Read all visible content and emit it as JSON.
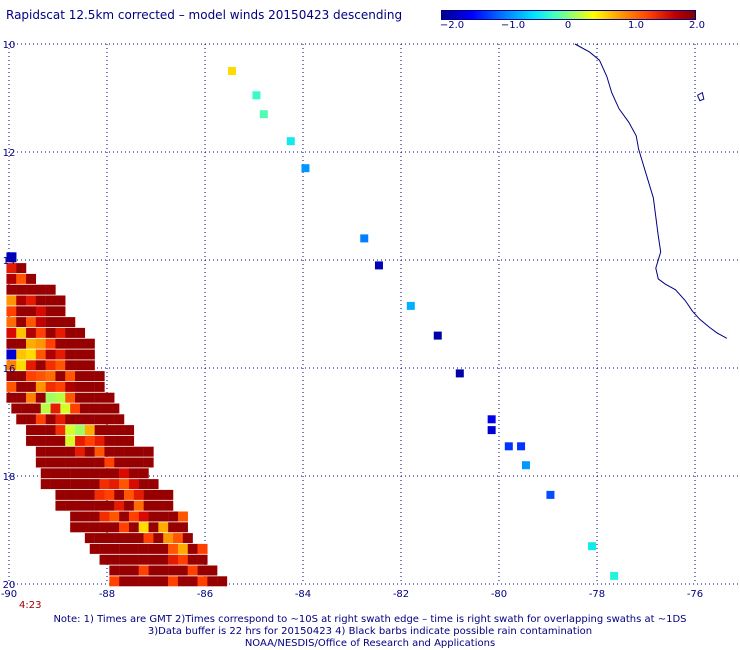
{
  "header": {
    "title": "Rapidscat 12.5km corrected – model winds 20150423 descending"
  },
  "colorbar": {
    "ticks": [
      "−2.0",
      "−1.0",
      "0",
      "1.0",
      "2.0"
    ],
    "values": [
      -2.0,
      -1.0,
      0,
      1.0,
      2.0
    ]
  },
  "chart_data": {
    "type": "heatmap",
    "title": "Rapidscat 12.5km corrected – model winds 20150423 descending",
    "xlabel": "",
    "ylabel": "",
    "xlim": [
      -90,
      -75
    ],
    "ylim": [
      10,
      20
    ],
    "y_direction": "increasing-downward",
    "x_ticks": [
      -90,
      -88,
      -86,
      -84,
      -82,
      -80,
      -78,
      -76
    ],
    "y_ticks": [
      10,
      12,
      14,
      16,
      18,
      20
    ],
    "x_tick_labels": [
      "-90",
      "-88",
      "-86",
      "-84",
      "-82",
      "-80",
      "-78",
      "-76"
    ],
    "y_tick_labels": [
      "10",
      "12",
      "14",
      "16",
      "18",
      "20"
    ],
    "grid": true,
    "grid_style": "dotted",
    "colorbar_range": [
      -2.0,
      2.0
    ],
    "colors": {
      "grid": "#000080",
      "coast": "#000080",
      "dark_red": "#800000",
      "red": "#e00000",
      "orange": "#ff8000",
      "yellow": "#ffff00",
      "green": "#a0ff60"
    },
    "points": [
      {
        "lon": -85.45,
        "lat": 10.5,
        "v": 0.6
      },
      {
        "lon": -84.95,
        "lat": 10.95,
        "v": -0.3
      },
      {
        "lon": -84.8,
        "lat": 11.3,
        "v": -0.2
      },
      {
        "lon": -84.25,
        "lat": 11.8,
        "v": -0.5
      },
      {
        "lon": -83.95,
        "lat": 12.3,
        "v": -0.9
      },
      {
        "lon": -82.75,
        "lat": 13.6,
        "v": -1.0
      },
      {
        "lon": -82.45,
        "lat": 14.1,
        "v": -1.8
      },
      {
        "lon": -81.8,
        "lat": 14.85,
        "v": -0.8
      },
      {
        "lon": -81.25,
        "lat": 15.4,
        "v": -1.9
      },
      {
        "lon": -80.8,
        "lat": 16.1,
        "v": -1.9
      },
      {
        "lon": -80.15,
        "lat": 16.95,
        "v": -1.6
      },
      {
        "lon": -80.15,
        "lat": 17.15,
        "v": -1.7
      },
      {
        "lon": -79.8,
        "lat": 17.45,
        "v": -1.3
      },
      {
        "lon": -79.55,
        "lat": 17.45,
        "v": -1.3
      },
      {
        "lon": -79.45,
        "lat": 17.8,
        "v": -0.9
      },
      {
        "lon": -78.95,
        "lat": 18.35,
        "v": -1.2
      },
      {
        "lon": -78.1,
        "lat": 19.3,
        "v": -0.5
      },
      {
        "lon": -77.65,
        "lat": 19.85,
        "v": -0.4
      }
    ],
    "swath_rows": [
      {
        "lat": 13.95,
        "lon0": -89.95,
        "vals": [
          -1.8
        ]
      },
      {
        "lat": 14.15,
        "lon0": -89.95,
        "vals": [
          1.5,
          1.9
        ]
      },
      {
        "lat": 14.35,
        "lon0": -89.95,
        "vals": [
          1.8,
          1.2,
          1.9
        ]
      },
      {
        "lat": 14.55,
        "lon0": -89.95,
        "vals": [
          1.9,
          1.9,
          1.9,
          1.9,
          1.9
        ]
      },
      {
        "lat": 14.75,
        "lon0": -89.95,
        "vals": [
          0.9,
          1.8,
          1.5,
          1.9,
          1.9,
          1.9
        ]
      },
      {
        "lat": 14.95,
        "lon0": -89.95,
        "vals": [
          1.3,
          1.9,
          1.9,
          1.6,
          1.9,
          1.9
        ]
      },
      {
        "lat": 15.15,
        "lon0": -89.95,
        "vals": [
          1.1,
          1.9,
          1.2,
          1.7,
          1.9,
          1.9,
          1.9
        ]
      },
      {
        "lat": 15.35,
        "lon0": -89.95,
        "vals": [
          1.6,
          0.7,
          1.8,
          1.3,
          1.9,
          1.5,
          1.9,
          1.9
        ]
      },
      {
        "lat": 15.55,
        "lon0": -89.95,
        "vals": [
          1.9,
          1.9,
          0.8,
          0.9,
          1.3,
          1.9,
          1.9,
          1.9,
          1.9
        ]
      },
      {
        "lat": 15.75,
        "lon0": -89.95,
        "vals": [
          -1.7,
          0.7,
          0.6,
          1.2,
          1.8,
          1.5,
          1.9,
          1.9,
          1.9
        ]
      },
      {
        "lat": 15.95,
        "lon0": -89.95,
        "vals": [
          1.0,
          0.6,
          1.5,
          1.9,
          1.4,
          1.2,
          1.9,
          1.9,
          1.9
        ]
      },
      {
        "lat": 16.15,
        "lon0": -89.95,
        "vals": [
          1.9,
          1.9,
          1.3,
          1.2,
          1.1,
          1.9,
          1.2,
          1.9,
          1.9,
          1.9
        ]
      },
      {
        "lat": 16.35,
        "lon0": -89.95,
        "vals": [
          1.2,
          1.9,
          1.9,
          0.9,
          1.4,
          1.3,
          1.8,
          1.9,
          1.9,
          1.9
        ]
      },
      {
        "lat": 16.55,
        "lon0": -89.95,
        "vals": [
          1.9,
          1.9,
          1.0,
          1.9,
          0.1,
          0.2,
          1.2,
          1.9,
          1.9,
          1.9,
          1.9
        ]
      },
      {
        "lat": 16.75,
        "lon0": -89.85,
        "vals": [
          1.9,
          1.9,
          1.9,
          0.2,
          1.5,
          0.3,
          1.3,
          1.9,
          1.9,
          1.9,
          1.9
        ]
      },
      {
        "lat": 16.95,
        "lon0": -89.75,
        "vals": [
          1.9,
          1.9,
          1.3,
          1.9,
          1.5,
          1.9,
          1.9,
          1.9,
          1.9,
          1.9,
          1.9
        ]
      },
      {
        "lat": 17.15,
        "lon0": -89.55,
        "vals": [
          1.9,
          1.9,
          1.9,
          1.4,
          0.3,
          0.1,
          0.8,
          1.9,
          1.9,
          1.9,
          1.9
        ]
      },
      {
        "lat": 17.35,
        "lon0": -89.55,
        "vals": [
          1.9,
          1.9,
          1.9,
          1.9,
          0.3,
          1.5,
          1.3,
          1.5,
          1.9,
          1.9,
          1.9
        ]
      },
      {
        "lat": 17.55,
        "lon0": -89.35,
        "vals": [
          1.9,
          1.9,
          1.9,
          1.9,
          1.5,
          1.9,
          1.2,
          1.9,
          1.9,
          1.9,
          1.9,
          1.9
        ]
      },
      {
        "lat": 17.75,
        "lon0": -89.35,
        "vals": [
          1.9,
          1.9,
          1.9,
          1.9,
          1.9,
          1.9,
          1.9,
          1.3,
          1.9,
          1.9,
          1.9,
          1.9
        ]
      },
      {
        "lat": 17.95,
        "lon0": -89.25,
        "vals": [
          1.9,
          1.9,
          1.9,
          1.9,
          1.9,
          1.9,
          1.9,
          1.9,
          1.6,
          1.9,
          1.9
        ]
      },
      {
        "lat": 18.15,
        "lon0": -89.25,
        "vals": [
          1.9,
          1.9,
          1.9,
          1.9,
          1.9,
          1.9,
          1.4,
          1.5,
          1.2,
          1.6,
          1.9,
          1.9
        ]
      },
      {
        "lat": 18.35,
        "lon0": -88.95,
        "vals": [
          1.9,
          1.9,
          1.9,
          1.9,
          1.4,
          1.3,
          1.9,
          1.2,
          1.5,
          1.9,
          1.9,
          1.9
        ]
      },
      {
        "lat": 18.55,
        "lon0": -88.95,
        "vals": [
          1.9,
          1.9,
          1.9,
          1.9,
          1.9,
          1.9,
          1.5,
          1.9,
          1.1,
          1.9,
          1.9,
          1.9
        ]
      },
      {
        "lat": 18.75,
        "lon0": -88.65,
        "vals": [
          1.9,
          1.9,
          1.9,
          1.4,
          1.2,
          1.9,
          1.3,
          1.6,
          1.9,
          1.9,
          1.9,
          1.2
        ]
      },
      {
        "lat": 18.95,
        "lon0": -88.65,
        "vals": [
          1.9,
          1.9,
          1.9,
          1.9,
          1.9,
          1.3,
          1.9,
          0.6,
          1.9,
          0.8,
          1.9,
          1.9
        ]
      },
      {
        "lat": 19.15,
        "lon0": -88.35,
        "vals": [
          1.9,
          1.9,
          1.9,
          1.9,
          1.9,
          1.9,
          1.3,
          1.9,
          0.9,
          1.2,
          1.9
        ]
      },
      {
        "lat": 19.35,
        "lon0": -88.25,
        "vals": [
          1.9,
          1.9,
          1.9,
          1.9,
          1.9,
          1.9,
          1.9,
          1.9,
          1.2,
          0.8,
          1.9,
          1.3
        ]
      },
      {
        "lat": 19.55,
        "lon0": -88.05,
        "vals": [
          1.9,
          1.9,
          1.9,
          1.9,
          1.9,
          1.9,
          1.9,
          1.5,
          1.3,
          1.9,
          1.9
        ]
      },
      {
        "lat": 19.75,
        "lon0": -87.85,
        "vals": [
          1.9,
          1.9,
          1.9,
          1.3,
          1.9,
          1.9,
          1.9,
          1.9,
          1.3,
          1.9,
          1.9
        ]
      },
      {
        "lat": 19.95,
        "lon0": -87.85,
        "vals": [
          1.3,
          1.9,
          1.9,
          1.9,
          1.9,
          1.9,
          1.3,
          1.9,
          1.9,
          1.3,
          1.9,
          1.9
        ]
      }
    ],
    "coastline": [
      [
        -78.45,
        10.0
      ],
      [
        -78.15,
        10.15
      ],
      [
        -77.95,
        10.3
      ],
      [
        -77.8,
        10.6
      ],
      [
        -77.7,
        10.9
      ],
      [
        -77.55,
        11.2
      ],
      [
        -77.35,
        11.45
      ],
      [
        -77.2,
        11.7
      ],
      [
        -77.15,
        11.95
      ],
      [
        -77.05,
        12.25
      ],
      [
        -76.95,
        12.55
      ],
      [
        -76.85,
        12.85
      ],
      [
        -76.8,
        13.2
      ],
      [
        -76.75,
        13.55
      ],
      [
        -76.7,
        13.85
      ],
      [
        -76.8,
        14.15
      ],
      [
        -76.75,
        14.35
      ],
      [
        -76.6,
        14.45
      ],
      [
        -76.4,
        14.55
      ],
      [
        -76.2,
        14.75
      ],
      [
        -76.05,
        14.95
      ],
      [
        -75.9,
        15.1
      ],
      [
        -75.7,
        15.25
      ],
      [
        -75.55,
        15.35
      ],
      [
        -75.35,
        15.45
      ]
    ],
    "island": [
      [
        -75.95,
        10.95
      ],
      [
        -75.85,
        10.9
      ],
      [
        -75.82,
        11.02
      ],
      [
        -75.9,
        11.05
      ],
      [
        -75.95,
        10.95
      ]
    ]
  },
  "footer": {
    "time_label": "4:23",
    "note_lines": [
      "Note: 1) Times are GMT 2)Times correspond to ∼10S at right swath edge – time is right swath for overlapping swaths at ∼1DS",
      "3)Data buffer is 22 hrs for 20150423 4) Black barbs indicate possible rain contamination",
      "NOAA/NESDIS/Office of Research and Applications"
    ]
  }
}
